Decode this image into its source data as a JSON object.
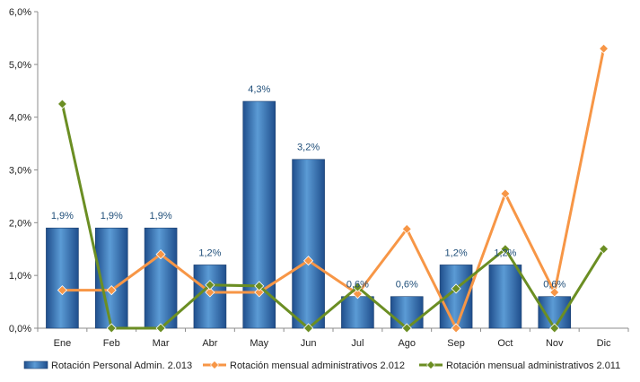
{
  "chart_data": {
    "type": "bar",
    "categories": [
      "Ene",
      "Feb",
      "Mar",
      "Abr",
      "May",
      "Jun",
      "Jul",
      "Ago",
      "Sep",
      "Oct",
      "Nov",
      "Dic"
    ],
    "ylim": [
      0,
      6
    ],
    "yticks": [
      "0,0%",
      "1,0%",
      "2,0%",
      "3,0%",
      "4,0%",
      "5,0%",
      "6,0%"
    ],
    "grid": false,
    "legend_position": "bottom",
    "series": [
      {
        "name": "Rotación Personal Admin. 2.013",
        "type": "bar",
        "color": "#2e6db4",
        "values": [
          1.9,
          1.9,
          1.9,
          1.2,
          4.3,
          3.2,
          0.6,
          0.6,
          1.2,
          1.2,
          0.6,
          null
        ],
        "labels": [
          "1,9%",
          "1,9%",
          "1,9%",
          "1,2%",
          "4,3%",
          "3,2%",
          "0,6%",
          "0,6%",
          "1,2%",
          "1,2%",
          "0,6%",
          ""
        ]
      },
      {
        "name": "Rotación mensual administrativos 2.012",
        "type": "line",
        "color": "#f79646",
        "values": [
          0.72,
          0.72,
          1.4,
          0.68,
          0.68,
          1.28,
          0.65,
          1.88,
          0.0,
          2.55,
          0.68,
          5.3
        ]
      },
      {
        "name": "Rotación mensual administrativos 2.011",
        "type": "line",
        "color": "#6b8e23",
        "values": [
          4.25,
          0.0,
          0.0,
          0.82,
          0.8,
          0.0,
          0.78,
          0.0,
          0.75,
          1.5,
          0.0,
          1.5
        ]
      }
    ]
  }
}
